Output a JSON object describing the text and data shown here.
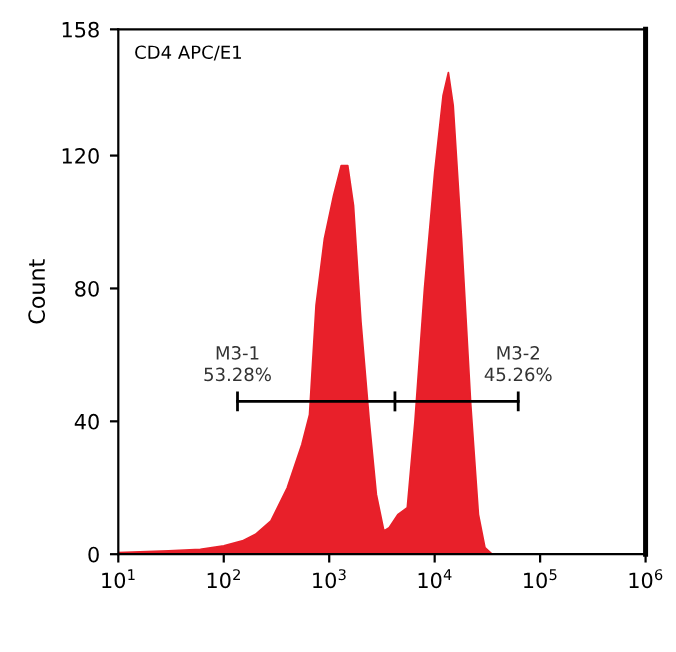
{
  "chart_data": {
    "type": "area",
    "title": "CD4 APC/E1",
    "ylabel": "Count",
    "log": "x",
    "grid": false,
    "legend": false,
    "xlim": [
      10,
      1000000
    ],
    "ylim": [
      0,
      158
    ],
    "xticks": [
      {
        "value": 10,
        "label": "10$^{1}$"
      },
      {
        "value": 100,
        "label": "10$^{2}$"
      },
      {
        "value": 1000,
        "label": "10$^{3}$"
      },
      {
        "value": 10000,
        "label": "10$^{4}$"
      },
      {
        "value": 100000,
        "label": "10$^{5}$"
      },
      {
        "value": 1000000,
        "label": "10$^{6}$"
      }
    ],
    "yticks": [
      0,
      40,
      80,
      120,
      158
    ],
    "series": [
      {
        "color": "#e8202a",
        "x": [
          10,
          30,
          60,
          100,
          150,
          200,
          280,
          400,
          550,
          650,
          750,
          900,
          1100,
          1300,
          1500,
          1700,
          2000,
          2400,
          2800,
          3300,
          3700,
          4500,
          5500,
          6500,
          8000,
          10000,
          12000,
          13500,
          15000,
          18000,
          22000,
          26000,
          30000,
          35000,
          1000000
        ],
        "values": [
          0.5,
          1,
          1.5,
          2.5,
          4,
          6,
          10,
          20,
          33,
          42,
          75,
          95,
          108,
          117,
          117,
          105,
          70,
          40,
          18,
          7,
          8,
          12,
          14,
          40,
          80,
          115,
          138,
          145,
          135,
          95,
          45,
          12,
          2,
          0,
          0
        ]
      },
      {
        "type": "line",
        "color": "#000000",
        "x": [
          135,
          4200,
          62000
        ],
        "values": [
          46,
          46,
          46
        ],
        "errors": [
          3,
          3,
          3
        ]
      }
    ],
    "annotations": [
      {
        "text": "M3-1\n53.28%",
        "x": 135,
        "y": 46
      },
      {
        "text": "M3-2\n45.26%",
        "x": 62000,
        "y": 46
      }
    ]
  }
}
